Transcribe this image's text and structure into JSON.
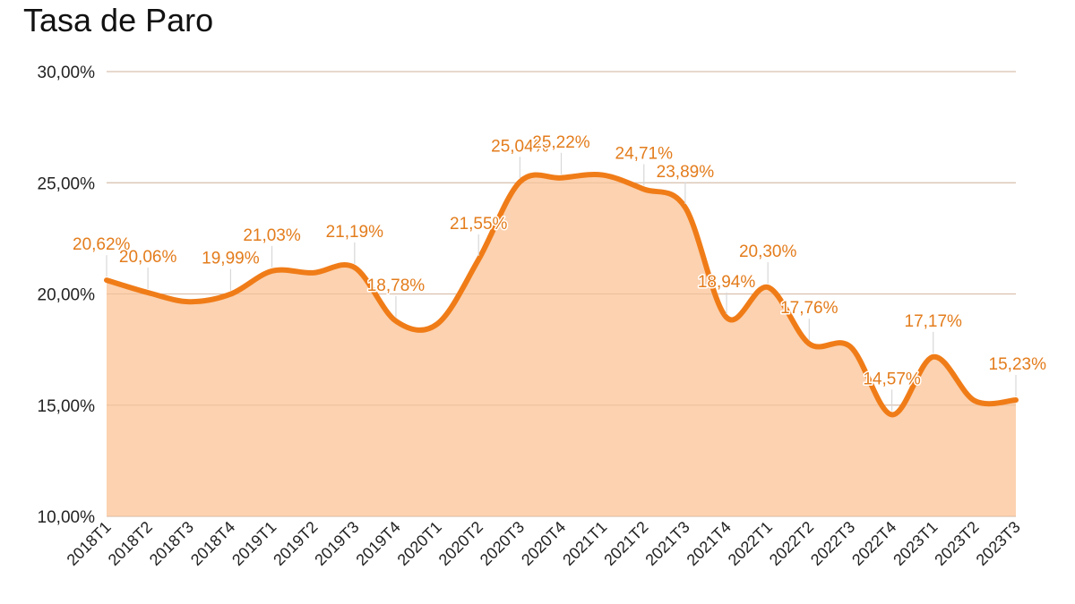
{
  "chart_data": {
    "type": "area",
    "title": "Tasa de Paro",
    "xlabel": "",
    "ylabel": "",
    "ylim": [
      10,
      30
    ],
    "yticks": [
      "10,00%",
      "15,00%",
      "20,00%",
      "25,00%",
      "30,00%"
    ],
    "ytick_values": [
      10,
      15,
      20,
      25,
      30
    ],
    "grid": true,
    "legend": "none",
    "categories": [
      "2018T1",
      "2018T2",
      "2018T3",
      "2018T4",
      "2019T1",
      "2019T2",
      "2019T3",
      "2019T4",
      "2020T1",
      "2020T2",
      "2020T3",
      "2020T4",
      "2021T1",
      "2021T2",
      "2021T3",
      "2021T4",
      "2022T1",
      "2022T2",
      "2022T3",
      "2022T4",
      "2023T1",
      "2023T2",
      "2023T3"
    ],
    "series": [
      {
        "values": [
          20.62,
          20.06,
          19.65,
          19.99,
          21.03,
          20.95,
          21.19,
          18.78,
          18.65,
          21.55,
          25.04,
          25.22,
          25.35,
          24.71,
          23.89,
          18.94,
          20.3,
          17.76,
          17.62,
          14.57,
          17.17,
          15.2,
          15.23
        ],
        "labels": [
          "20,62%",
          "20,06%",
          "",
          "19,99%",
          "21,03%",
          "",
          "21,19%",
          "18,78%",
          "",
          "21,55%",
          "25,04%",
          "25,22%",
          "",
          "24,71%",
          "23,89%",
          "18,94%",
          "20,30%",
          "17,76%",
          "",
          "14,57%",
          "17,17%",
          "",
          "15,23%"
        ],
        "line_color": "#f07c18",
        "fill_color": "#fcd2b0",
        "label_color": "#e37c1c"
      }
    ]
  }
}
